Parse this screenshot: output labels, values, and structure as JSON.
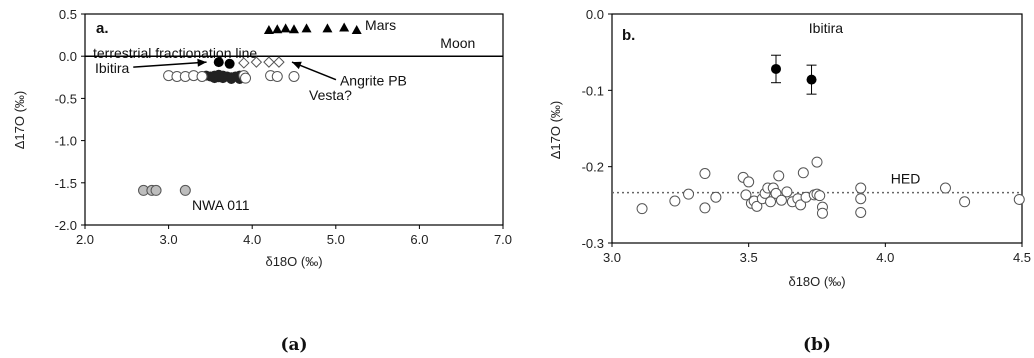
{
  "chart_data": [
    {
      "type": "scatter",
      "panel_label": "a.",
      "caption": "(a)",
      "xlabel": "δ18O (‰)",
      "ylabel": "Δ17O (‰)",
      "xlim": [
        2.0,
        7.0
      ],
      "ylim": [
        -2.0,
        0.5
      ],
      "xticks": [
        "2.0",
        "3.0",
        "4.0",
        "5.0",
        "6.0",
        "7.0"
      ],
      "yticks": [
        "0.5",
        "0.0",
        "-0.5",
        "-1.0",
        "-1.5",
        "-2.0"
      ],
      "reference_line": {
        "y": 0.0,
        "label": "terrestrial fractionation line"
      },
      "series": [
        {
          "marker": "filled-triangle",
          "color": "#000000",
          "points": [
            [
              4.2,
              0.31
            ],
            [
              4.3,
              0.32
            ],
            [
              4.4,
              0.33
            ],
            [
              4.5,
              0.32
            ],
            [
              4.65,
              0.33
            ],
            [
              4.9,
              0.33
            ],
            [
              5.1,
              0.34
            ],
            [
              5.25,
              0.31
            ]
          ]
        },
        {
          "marker": "open-diamond",
          "color": "#555555",
          "points": [
            [
              3.9,
              -0.08
            ],
            [
              4.05,
              -0.07
            ],
            [
              4.2,
              -0.07
            ],
            [
              4.32,
              -0.07
            ]
          ]
        },
        {
          "marker": "filled-circle",
          "color": "#000000",
          "points": [
            [
              3.6,
              -0.07
            ],
            [
              3.73,
              -0.09
            ]
          ]
        },
        {
          "marker": "filled-circle-dense",
          "color": "#222222",
          "points": [
            [
              3.45,
              -0.23
            ],
            [
              3.5,
              -0.24
            ],
            [
              3.55,
              -0.23
            ],
            [
              3.6,
              -0.25
            ],
            [
              3.65,
              -0.23
            ],
            [
              3.7,
              -0.24
            ],
            [
              3.75,
              -0.25
            ],
            [
              3.8,
              -0.24
            ],
            [
              3.85,
              -0.23
            ],
            [
              3.55,
              -0.26
            ],
            [
              3.65,
              -0.26
            ],
            [
              3.75,
              -0.27
            ],
            [
              3.85,
              -0.27
            ],
            [
              3.6,
              -0.22
            ]
          ]
        },
        {
          "marker": "open-circle",
          "color": "#555555",
          "points": [
            [
              3.0,
              -0.23
            ],
            [
              3.1,
              -0.24
            ],
            [
              3.2,
              -0.24
            ],
            [
              3.3,
              -0.23
            ],
            [
              3.4,
              -0.24
            ],
            [
              3.9,
              -0.23
            ],
            [
              3.92,
              -0.26
            ],
            [
              4.22,
              -0.23
            ],
            [
              4.3,
              -0.24
            ],
            [
              4.5,
              -0.24
            ]
          ]
        },
        {
          "marker": "gray-circle",
          "color": "#888888",
          "points": [
            [
              2.7,
              -1.59
            ],
            [
              2.8,
              -1.59
            ],
            [
              2.85,
              -1.59
            ],
            [
              3.2,
              -1.59
            ]
          ]
        }
      ],
      "annotations": [
        {
          "text": "Mars",
          "x": 5.35,
          "y": 0.31
        },
        {
          "text": "Moon",
          "x": 6.25,
          "y": 0.1
        },
        {
          "text": "Ibitira",
          "x": 2.12,
          "y": -0.2,
          "arrow_to": [
            3.55,
            -0.07
          ]
        },
        {
          "text": "Angrite PB",
          "x": 5.05,
          "y": -0.35,
          "arrow_to": [
            4.38,
            -0.07
          ]
        },
        {
          "text": "Vesta?",
          "x": 4.68,
          "y": -0.52
        },
        {
          "text": "NWA 011",
          "x": 3.28,
          "y": -1.82
        }
      ]
    },
    {
      "type": "scatter",
      "panel_label": "b.",
      "caption": "(b)",
      "xlabel": "δ18O (‰)",
      "ylabel": "Δ17O (‰)",
      "xlim": [
        3.0,
        4.5
      ],
      "ylim": [
        -0.3,
        0.0
      ],
      "xticks": [
        "3.0",
        "3.5",
        "4.0",
        "4.5"
      ],
      "yticks": [
        "0.0",
        "-0.1",
        "-0.2",
        "-0.3"
      ],
      "reference_line": {
        "y": -0.234,
        "label": "HED",
        "style": "dotted"
      },
      "series": [
        {
          "name": "Ibitira",
          "marker": "filled-circle",
          "color": "#000000",
          "points": [
            [
              3.6,
              -0.072
            ],
            [
              3.73,
              -0.086
            ]
          ],
          "error_y": [
            0.018,
            0.019
          ]
        },
        {
          "marker": "open-circle",
          "color": "#555555",
          "points": [
            [
              3.11,
              -0.255
            ],
            [
              3.23,
              -0.245
            ],
            [
              3.28,
              -0.236
            ],
            [
              3.34,
              -0.209
            ],
            [
              3.34,
              -0.254
            ],
            [
              3.38,
              -0.24
            ],
            [
              3.48,
              -0.214
            ],
            [
              3.49,
              -0.237
            ],
            [
              3.5,
              -0.22
            ],
            [
              3.51,
              -0.248
            ],
            [
              3.52,
              -0.245
            ],
            [
              3.53,
              -0.252
            ],
            [
              3.55,
              -0.242
            ],
            [
              3.56,
              -0.235
            ],
            [
              3.57,
              -0.228
            ],
            [
              3.58,
              -0.246
            ],
            [
              3.59,
              -0.228
            ],
            [
              3.6,
              -0.235
            ],
            [
              3.61,
              -0.212
            ],
            [
              3.62,
              -0.244
            ],
            [
              3.64,
              -0.233
            ],
            [
              3.66,
              -0.246
            ],
            [
              3.68,
              -0.242
            ],
            [
              3.69,
              -0.25
            ],
            [
              3.7,
              -0.208
            ],
            [
              3.71,
              -0.24
            ],
            [
              3.74,
              -0.237
            ],
            [
              3.75,
              -0.236
            ],
            [
              3.75,
              -0.194
            ],
            [
              3.76,
              -0.238
            ],
            [
              3.77,
              -0.253
            ],
            [
              3.77,
              -0.261
            ],
            [
              3.91,
              -0.228
            ],
            [
              3.91,
              -0.242
            ],
            [
              3.91,
              -0.26
            ],
            [
              4.22,
              -0.228
            ],
            [
              4.29,
              -0.246
            ],
            [
              4.49,
              -0.243
            ]
          ]
        }
      ],
      "annotations": [
        {
          "text": "Ibitira",
          "x": 3.72,
          "y": -0.025
        },
        {
          "text": "HED",
          "x": 4.02,
          "y": -0.222
        }
      ]
    }
  ]
}
